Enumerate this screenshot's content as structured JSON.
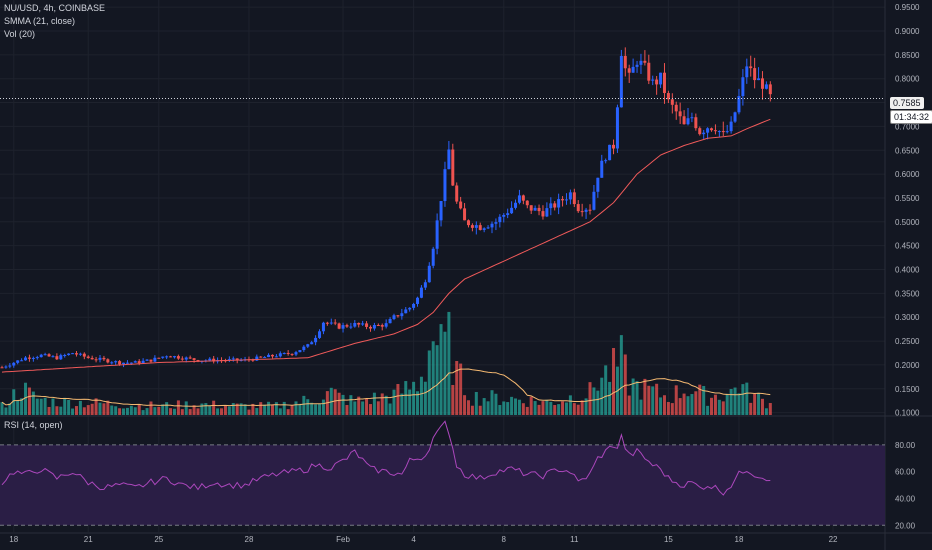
{
  "legend": {
    "symbol_line": "NU/USD, 4h, COINBASE",
    "indicator_line": "SMMA (21, close)",
    "volume_line": "Vol (20)",
    "rsi_line": "RSI (14, open)"
  },
  "price_tag": {
    "price": "0.7585",
    "countdown": "01:34:32"
  },
  "colors": {
    "background": "#131722",
    "up": "#2962ff",
    "down": "#ef5350",
    "volume_up": "#26a69a",
    "volume_down": "#ef5350",
    "smma": "#f05a5a",
    "volume_ma": "#f5b971",
    "rsi": "#ab47bc",
    "rsi_band": "#2a1e45",
    "grid": "#1e222d",
    "axis_text": "#b2b5be"
  },
  "chart_data": [
    {
      "type": "candlestick",
      "title": "NU/USD, 4h, COINBASE",
      "y_ticks": [
        "0.9500",
        "0.9000",
        "0.8500",
        "0.8000",
        "0.7500",
        "0.7000",
        "0.6500",
        "0.6000",
        "0.5500",
        "0.5000",
        "0.4500",
        "0.4000",
        "0.3500",
        "0.3000",
        "0.2500",
        "0.2000",
        "0.1500",
        "0.1000"
      ],
      "ylim": [
        0.095,
        0.965
      ],
      "x_ticks": [
        "18",
        "21",
        "25",
        "28",
        "Feb",
        "4",
        "8",
        "11",
        "15",
        "18",
        "22"
      ],
      "last_price": 0.7585,
      "price_keypoints": [
        [
          0,
          0.195
        ],
        [
          3,
          0.205
        ],
        [
          6,
          0.215
        ],
        [
          10,
          0.22
        ],
        [
          14,
          0.215
        ],
        [
          18,
          0.225
        ],
        [
          22,
          0.215
        ],
        [
          26,
          0.21
        ],
        [
          30,
          0.205
        ],
        [
          34,
          0.205
        ],
        [
          38,
          0.21
        ],
        [
          42,
          0.22
        ],
        [
          46,
          0.215
        ],
        [
          50,
          0.21
        ],
        [
          54,
          0.21
        ],
        [
          58,
          0.21
        ],
        [
          62,
          0.21
        ],
        [
          66,
          0.215
        ],
        [
          70,
          0.22
        ],
        [
          74,
          0.225
        ],
        [
          78,
          0.24
        ],
        [
          80,
          0.26
        ],
        [
          82,
          0.29
        ],
        [
          86,
          0.28
        ],
        [
          90,
          0.285
        ],
        [
          94,
          0.28
        ],
        [
          98,
          0.285
        ],
        [
          100,
          0.3
        ],
        [
          104,
          0.32
        ],
        [
          106,
          0.34
        ],
        [
          108,
          0.38
        ],
        [
          110,
          0.45
        ],
        [
          112,
          0.55
        ],
        [
          113,
          0.6
        ],
        [
          114,
          0.65
        ],
        [
          115,
          0.58
        ],
        [
          116,
          0.54
        ],
        [
          118,
          0.5
        ],
        [
          122,
          0.49
        ],
        [
          126,
          0.5
        ],
        [
          130,
          0.53
        ],
        [
          132,
          0.55
        ],
        [
          134,
          0.53
        ],
        [
          138,
          0.52
        ],
        [
          142,
          0.54
        ],
        [
          145,
          0.56
        ],
        [
          147,
          0.53
        ],
        [
          150,
          0.53
        ],
        [
          152,
          0.6
        ],
        [
          154,
          0.64
        ],
        [
          156,
          0.66
        ],
        [
          157,
          0.75
        ],
        [
          158,
          0.86
        ],
        [
          159,
          0.82
        ],
        [
          160,
          0.8
        ],
        [
          162,
          0.84
        ],
        [
          164,
          0.82
        ],
        [
          166,
          0.79
        ],
        [
          168,
          0.8
        ],
        [
          170,
          0.75
        ],
        [
          172,
          0.73
        ],
        [
          174,
          0.7
        ],
        [
          176,
          0.72
        ],
        [
          178,
          0.69
        ],
        [
          180,
          0.7
        ],
        [
          182,
          0.7
        ],
        [
          184,
          0.68
        ],
        [
          186,
          0.7
        ],
        [
          188,
          0.76
        ],
        [
          190,
          0.83
        ],
        [
          192,
          0.8
        ],
        [
          194,
          0.79
        ],
        [
          196,
          0.76
        ]
      ],
      "smma_keypoints": [
        [
          0,
          0.185
        ],
        [
          20,
          0.195
        ],
        [
          40,
          0.205
        ],
        [
          60,
          0.21
        ],
        [
          78,
          0.215
        ],
        [
          90,
          0.245
        ],
        [
          100,
          0.265
        ],
        [
          106,
          0.285
        ],
        [
          110,
          0.31
        ],
        [
          114,
          0.35
        ],
        [
          118,
          0.38
        ],
        [
          126,
          0.41
        ],
        [
          134,
          0.44
        ],
        [
          142,
          0.47
        ],
        [
          150,
          0.5
        ],
        [
          156,
          0.54
        ],
        [
          162,
          0.6
        ],
        [
          168,
          0.64
        ],
        [
          174,
          0.66
        ],
        [
          180,
          0.675
        ],
        [
          186,
          0.68
        ],
        [
          190,
          0.695
        ],
        [
          196,
          0.715
        ]
      ]
    },
    {
      "type": "bar",
      "title": "Vol (20)",
      "volume_keypoints": [
        [
          0,
          10
        ],
        [
          5,
          30
        ],
        [
          8,
          20
        ],
        [
          12,
          15
        ],
        [
          20,
          14
        ],
        [
          30,
          12
        ],
        [
          40,
          10
        ],
        [
          50,
          12
        ],
        [
          60,
          10
        ],
        [
          70,
          10
        ],
        [
          80,
          18
        ],
        [
          84,
          25
        ],
        [
          86,
          20
        ],
        [
          90,
          15
        ],
        [
          100,
          22
        ],
        [
          106,
          35
        ],
        [
          108,
          55
        ],
        [
          110,
          90
        ],
        [
          112,
          70
        ],
        [
          114,
          80
        ],
        [
          116,
          45
        ],
        [
          120,
          20
        ],
        [
          130,
          18
        ],
        [
          140,
          14
        ],
        [
          150,
          25
        ],
        [
          152,
          40
        ],
        [
          156,
          50
        ],
        [
          158,
          60
        ],
        [
          160,
          35
        ],
        [
          170,
          20
        ],
        [
          175,
          30
        ],
        [
          180,
          20
        ],
        [
          186,
          25
        ],
        [
          188,
          35
        ],
        [
          190,
          25
        ],
        [
          196,
          12
        ]
      ]
    },
    {
      "type": "line",
      "title": "RSI (14, open)",
      "y_ticks": [
        "80.00",
        "60.00",
        "40.00",
        "20.00"
      ],
      "ylim": [
        15,
        100
      ],
      "bands": [
        80,
        20
      ],
      "rsi_keypoints": [
        [
          0,
          52
        ],
        [
          3,
          60
        ],
        [
          6,
          58
        ],
        [
          10,
          62
        ],
        [
          14,
          55
        ],
        [
          18,
          60
        ],
        [
          22,
          52
        ],
        [
          26,
          48
        ],
        [
          30,
          50
        ],
        [
          34,
          48
        ],
        [
          38,
          52
        ],
        [
          42,
          55
        ],
        [
          46,
          50
        ],
        [
          50,
          48
        ],
        [
          54,
          52
        ],
        [
          58,
          50
        ],
        [
          62,
          50
        ],
        [
          66,
          55
        ],
        [
          70,
          58
        ],
        [
          74,
          60
        ],
        [
          78,
          62
        ],
        [
          80,
          65
        ],
        [
          84,
          63
        ],
        [
          88,
          70
        ],
        [
          90,
          75
        ],
        [
          94,
          62
        ],
        [
          98,
          60
        ],
        [
          102,
          58
        ],
        [
          104,
          68
        ],
        [
          108,
          72
        ],
        [
          110,
          85
        ],
        [
          112,
          92
        ],
        [
          113,
          96
        ],
        [
          114,
          90
        ],
        [
          116,
          65
        ],
        [
          118,
          58
        ],
        [
          122,
          55
        ],
        [
          126,
          60
        ],
        [
          130,
          62
        ],
        [
          134,
          58
        ],
        [
          138,
          57
        ],
        [
          142,
          62
        ],
        [
          145,
          60
        ],
        [
          147,
          52
        ],
        [
          150,
          58
        ],
        [
          152,
          70
        ],
        [
          154,
          75
        ],
        [
          156,
          80
        ],
        [
          157,
          78
        ],
        [
          158,
          86
        ],
        [
          159,
          78
        ],
        [
          160,
          72
        ],
        [
          162,
          75
        ],
        [
          164,
          70
        ],
        [
          166,
          65
        ],
        [
          168,
          62
        ],
        [
          170,
          55
        ],
        [
          172,
          52
        ],
        [
          174,
          50
        ],
        [
          176,
          52
        ],
        [
          178,
          48
        ],
        [
          180,
          50
        ],
        [
          182,
          48
        ],
        [
          184,
          45
        ],
        [
          186,
          50
        ],
        [
          188,
          58
        ],
        [
          190,
          62
        ],
        [
          192,
          58
        ],
        [
          194,
          56
        ],
        [
          196,
          55
        ]
      ]
    }
  ]
}
